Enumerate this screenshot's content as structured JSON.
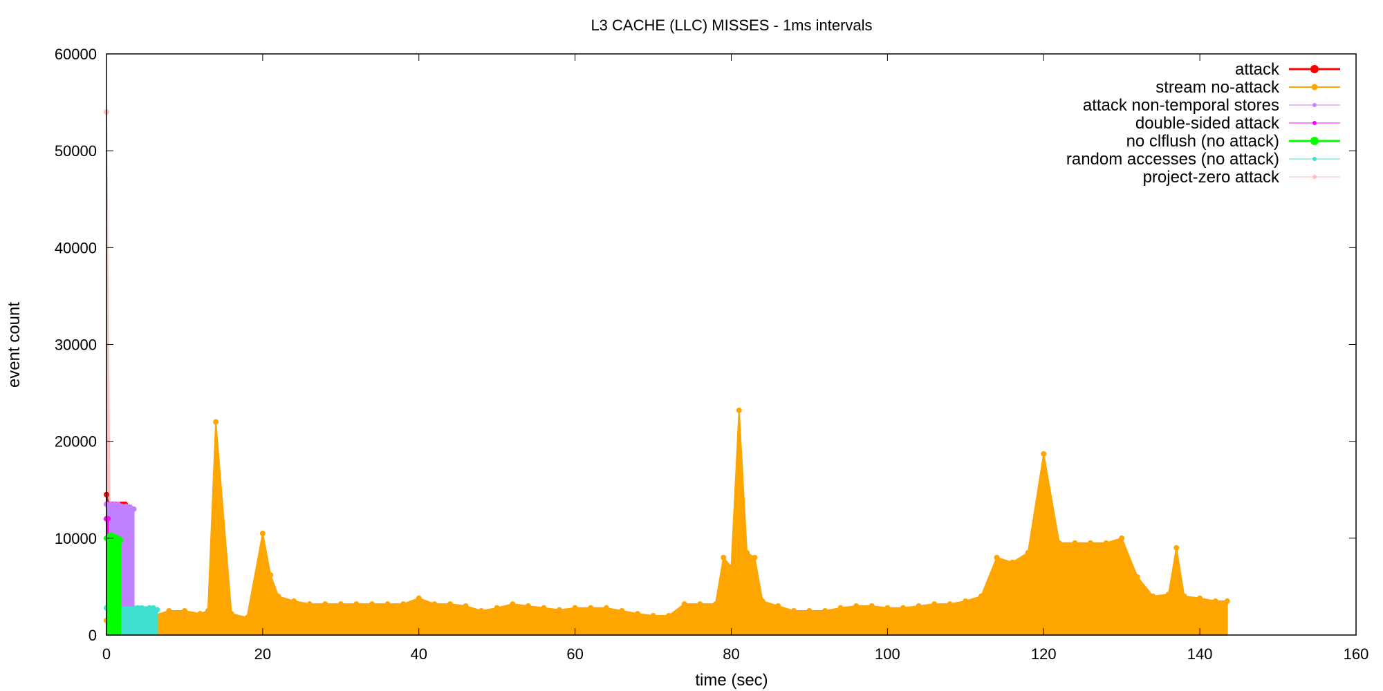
{
  "chart_data": {
    "type": "line",
    "title": "L3 CACHE (LLC) MISSES - 1ms intervals",
    "xlabel": "time (sec)",
    "ylabel": "event count",
    "xlim": [
      0,
      160
    ],
    "ylim": [
      0,
      60000
    ],
    "xticks": [
      "0",
      "20",
      "40",
      "60",
      "80",
      "100",
      "120",
      "140",
      "160"
    ],
    "yticks": [
      "0",
      "10000",
      "20000",
      "30000",
      "40000",
      "50000",
      "60000"
    ],
    "grid": false,
    "legend_position": "top-right",
    "series": [
      {
        "name": "attack",
        "color": "#ff0000",
        "x": [
          0.0,
          0.3,
          0.6,
          0.9,
          1.2,
          1.5,
          1.8,
          2.1,
          2.4,
          2.7,
          3.0,
          3.3
        ],
        "min": [
          3500,
          3500,
          3500,
          3500,
          3500,
          3500,
          3500,
          3500,
          3500,
          3500,
          3500,
          3500
        ],
        "max": [
          14500,
          13500,
          13500,
          13500,
          13500,
          13500,
          13500,
          13500,
          13500,
          13200,
          13200,
          13000
        ]
      },
      {
        "name": "stream no-attack",
        "color": "#ffa500",
        "x": [
          0,
          2,
          4,
          6,
          8,
          10,
          12,
          13,
          14,
          16,
          18,
          20,
          21,
          22,
          24,
          26,
          28,
          30,
          32,
          34,
          36,
          38,
          40,
          42,
          44,
          46,
          48,
          50,
          52,
          54,
          56,
          58,
          60,
          62,
          64,
          66,
          68,
          70,
          72,
          74,
          76,
          78,
          79,
          80,
          81,
          82,
          83,
          84,
          86,
          88,
          90,
          92,
          94,
          96,
          98,
          100,
          102,
          104,
          106,
          108,
          110,
          112,
          114,
          116,
          118,
          120,
          122,
          124,
          126,
          128,
          130,
          132,
          134,
          136,
          137,
          138,
          140,
          142,
          143.5
        ],
        "min": [
          0,
          0,
          0,
          0,
          0,
          0,
          0,
          0,
          0,
          0,
          0,
          0,
          0,
          0,
          0,
          0,
          0,
          0,
          0,
          0,
          0,
          0,
          0,
          0,
          0,
          0,
          0,
          0,
          0,
          0,
          0,
          0,
          0,
          0,
          0,
          0,
          0,
          0,
          0,
          0,
          0,
          0,
          0,
          0,
          0,
          0,
          0,
          0,
          0,
          0,
          0,
          0,
          0,
          0,
          0,
          0,
          0,
          0,
          0,
          0,
          0,
          0,
          0,
          0,
          0,
          0,
          0,
          0,
          0,
          0,
          0,
          0,
          0,
          0,
          0,
          0,
          0,
          0,
          0
        ],
        "max": [
          1500,
          1500,
          1500,
          2000,
          2500,
          2500,
          2200,
          2500,
          22000,
          2200,
          1800,
          10500,
          6200,
          4000,
          3500,
          3200,
          3200,
          3200,
          3200,
          3200,
          3200,
          3200,
          3800,
          3200,
          3200,
          3000,
          2500,
          2800,
          3200,
          3000,
          2800,
          2600,
          2800,
          2800,
          2800,
          2500,
          2200,
          2000,
          2000,
          3200,
          3200,
          3200,
          8000,
          7000,
          23200,
          8500,
          8000,
          3500,
          3000,
          2500,
          2500,
          2500,
          2800,
          3000,
          3000,
          2800,
          2800,
          3000,
          3200,
          3200,
          3500,
          4000,
          8000,
          7500,
          8500,
          18700,
          9500,
          9500,
          9500,
          9500,
          10000,
          6000,
          4000,
          4200,
          9000,
          4000,
          3800,
          3500,
          3500
        ]
      },
      {
        "name": "attack non-temporal stores",
        "color": "#c080ff",
        "x": [
          0.0,
          0.5,
          1.0,
          1.5,
          2.0,
          2.5,
          3.0,
          3.5
        ],
        "min": [
          3000,
          3000,
          3000,
          3000,
          3000,
          3000,
          3000,
          3000
        ],
        "max": [
          13500,
          13500,
          13500,
          13500,
          13300,
          13300,
          13200,
          13000
        ]
      },
      {
        "name": "double-sided attack",
        "color": "#ff00ff",
        "x": [
          0.0,
          0.1,
          0.2
        ],
        "min": [
          3000,
          3000,
          3000
        ],
        "max": [
          12000,
          12000,
          12000
        ]
      },
      {
        "name": "no clflush (no attack)",
        "color": "#00ff00",
        "x": [
          0.0,
          0.3,
          0.6,
          0.9,
          1.2,
          1.5,
          1.8
        ],
        "min": [
          0,
          0,
          0,
          0,
          0,
          0,
          0
        ],
        "max": [
          10000,
          10200,
          10300,
          10200,
          10100,
          10000,
          9800
        ]
      },
      {
        "name": "random accesses (no attack)",
        "color": "#40e0d0",
        "x": [
          0.0,
          0.5,
          1.0,
          1.5,
          2.0,
          2.5,
          3.0,
          3.5,
          4.0,
          4.5,
          5.0,
          5.5,
          6.0,
          6.5
        ],
        "min": [
          0,
          0,
          0,
          0,
          0,
          0,
          0,
          0,
          0,
          0,
          0,
          0,
          0,
          0
        ],
        "max": [
          2800,
          2800,
          2800,
          2700,
          2800,
          2800,
          2700,
          2800,
          2800,
          2800,
          2700,
          2800,
          2800,
          2600
        ]
      },
      {
        "name": "project-zero attack",
        "color": "#ffc0c0",
        "x": [
          0.0,
          0.5,
          1.0,
          1.5,
          2.0
        ],
        "min": [
          3000,
          3200,
          3200,
          3200,
          3200
        ],
        "max": [
          54000,
          6000,
          6000,
          6000,
          5500
        ]
      }
    ]
  }
}
